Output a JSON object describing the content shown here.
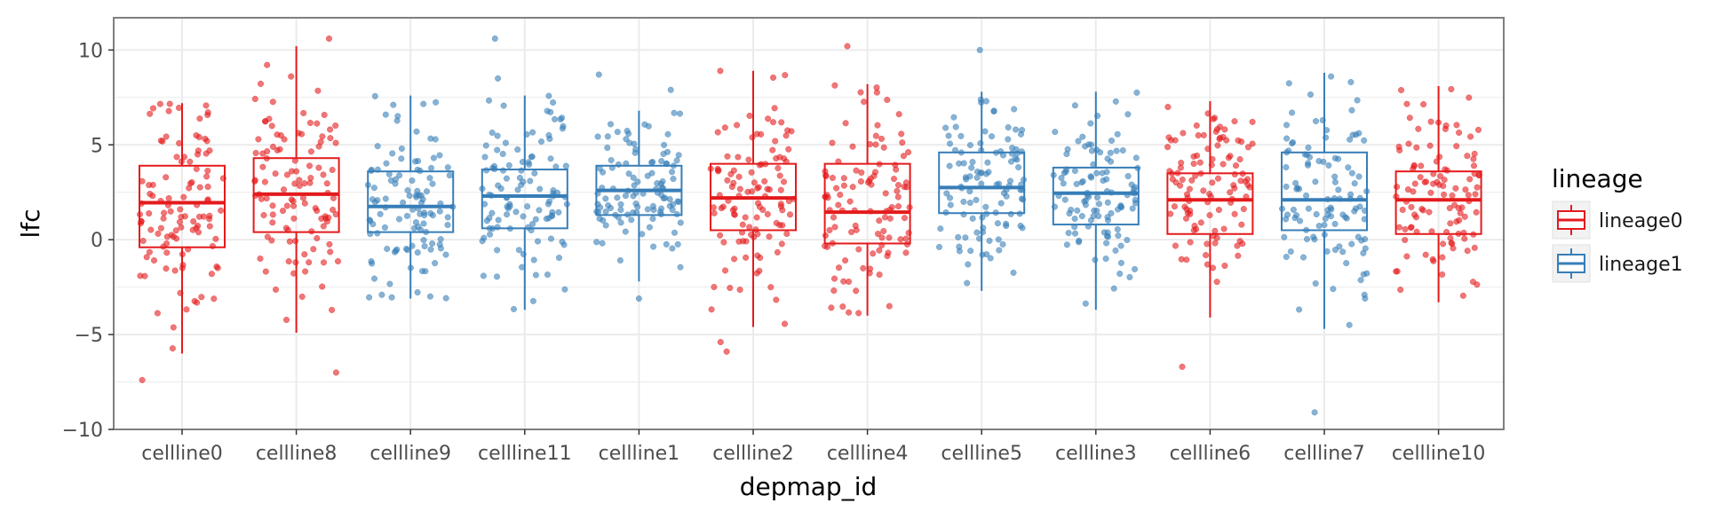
{
  "chart_data": {
    "type": "box",
    "xlabel": "depmap_id",
    "ylabel": "lfc",
    "ylim": [
      -10,
      11.7
    ],
    "y_ticks": [
      "−10",
      "−5",
      "0",
      "5",
      "10"
    ],
    "y_tick_values": [
      -10,
      -5,
      0,
      5,
      10
    ],
    "grid": true,
    "legend_position": "right",
    "legend": {
      "title": "lineage",
      "entries": [
        "lineage0",
        "lineage1"
      ]
    },
    "colors": {
      "lineage0": "#e41a1c",
      "lineage1": "#377eb8",
      "panel_border": "#7f7f7f",
      "grid": "#ebebeb"
    },
    "categories": [
      "cellline0",
      "cellline8",
      "cellline9",
      "cellline11",
      "cellline1",
      "cellline2",
      "cellline4",
      "cellline5",
      "cellline3",
      "cellline6",
      "cellline7",
      "cellline10"
    ],
    "boxes": [
      {
        "category": "cellline0",
        "lineage": "lineage0",
        "whisker_low": -6.0,
        "q1": -0.4,
        "median": 1.95,
        "q3": 3.9,
        "whisker_high": 7.2,
        "outliers": [
          -7.4
        ]
      },
      {
        "category": "cellline8",
        "lineage": "lineage0",
        "whisker_low": -4.9,
        "q1": 0.4,
        "median": 2.4,
        "q3": 4.3,
        "whisker_high": 10.2,
        "outliers": [
          -7.0,
          10.6
        ]
      },
      {
        "category": "cellline9",
        "lineage": "lineage1",
        "whisker_low": -3.1,
        "q1": 0.4,
        "median": 1.75,
        "q3": 3.6,
        "whisker_high": 7.6,
        "outliers": []
      },
      {
        "category": "cellline11",
        "lineage": "lineage1",
        "whisker_low": -3.7,
        "q1": 0.6,
        "median": 2.3,
        "q3": 3.7,
        "whisker_high": 7.6,
        "outliers": [
          8.5,
          10.6
        ]
      },
      {
        "category": "cellline1",
        "lineage": "lineage1",
        "whisker_low": -2.2,
        "q1": 1.3,
        "median": 2.6,
        "q3": 3.9,
        "whisker_high": 6.8,
        "outliers": [
          7.9,
          8.7,
          -3.1
        ]
      },
      {
        "category": "cellline2",
        "lineage": "lineage0",
        "whisker_low": -4.6,
        "q1": 0.5,
        "median": 2.2,
        "q3": 4.0,
        "whisker_high": 8.9,
        "outliers": [
          -5.4,
          -5.9,
          8.9
        ]
      },
      {
        "category": "cellline4",
        "lineage": "lineage0",
        "whisker_low": -4.0,
        "q1": -0.2,
        "median": 1.45,
        "q3": 4.0,
        "whisker_high": 8.2,
        "outliers": [
          10.2
        ]
      },
      {
        "category": "cellline5",
        "lineage": "lineage1",
        "whisker_low": -2.7,
        "q1": 1.4,
        "median": 2.75,
        "q3": 4.6,
        "whisker_high": 7.8,
        "outliers": [
          10.0
        ]
      },
      {
        "category": "cellline3",
        "lineage": "lineage1",
        "whisker_low": -3.7,
        "q1": 0.8,
        "median": 2.45,
        "q3": 3.8,
        "whisker_high": 7.8,
        "outliers": []
      },
      {
        "category": "cellline6",
        "lineage": "lineage0",
        "whisker_low": -4.1,
        "q1": 0.3,
        "median": 2.1,
        "q3": 3.5,
        "whisker_high": 7.3,
        "outliers": [
          -6.7
        ]
      },
      {
        "category": "cellline7",
        "lineage": "lineage1",
        "whisker_low": -4.7,
        "q1": 0.5,
        "median": 2.1,
        "q3": 4.6,
        "whisker_high": 8.8,
        "outliers": [
          -9.1
        ]
      },
      {
        "category": "cellline10",
        "lineage": "lineage0",
        "whisker_low": -3.3,
        "q1": 0.3,
        "median": 2.1,
        "q3": 3.6,
        "whisker_high": 8.1,
        "outliers": []
      }
    ]
  }
}
